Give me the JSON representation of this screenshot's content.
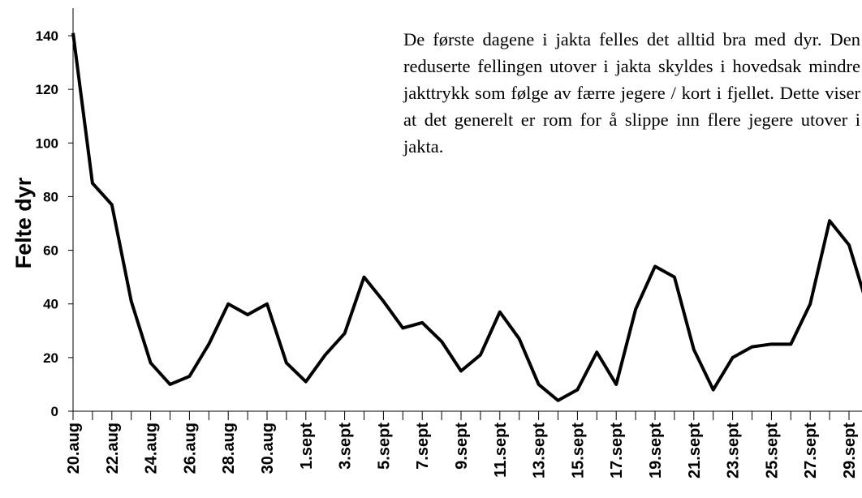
{
  "chart_data": {
    "type": "line",
    "y_label": "Felte dyr",
    "annotation": "De første dagene i jakta felles det alltid bra med dyr. Den reduserte fellingen utover i jakta skyldes i hovedsak mindre jakttrykk som følge av færre jegere / kort i fjellet. Dette viser at det generelt er rom for å slippe inn flere jegere utover i jakta.",
    "categories": [
      "20.aug",
      null,
      "22.aug",
      null,
      "24.aug",
      null,
      "26.aug",
      null,
      "28.aug",
      null,
      "30.aug",
      null,
      "1.sept",
      null,
      "3.sept",
      null,
      "5.sept",
      null,
      "7.sept",
      null,
      "9.sept",
      null,
      "11.sept",
      null,
      "13.sept",
      null,
      "15.sept",
      null,
      "17.sept",
      null,
      "19.sept",
      null,
      "21.sept",
      null,
      "23.sept",
      null,
      "25.sept",
      null,
      "27.sept",
      null,
      "29.sept",
      null
    ],
    "values": [
      141,
      85,
      77,
      41,
      18,
      10,
      13,
      25,
      40,
      36,
      40,
      18,
      11,
      21,
      29,
      50,
      41,
      31,
      33,
      26,
      15,
      21,
      37,
      27,
      10,
      4,
      8,
      22,
      10,
      38,
      54,
      50,
      23,
      8,
      20,
      24,
      25,
      25,
      40,
      71,
      62,
      38
    ],
    "color": "#000000",
    "ylim": [
      0,
      140
    ],
    "yticks": [
      0,
      20,
      40,
      60,
      80,
      100,
      120,
      140
    ],
    "grid": false
  }
}
